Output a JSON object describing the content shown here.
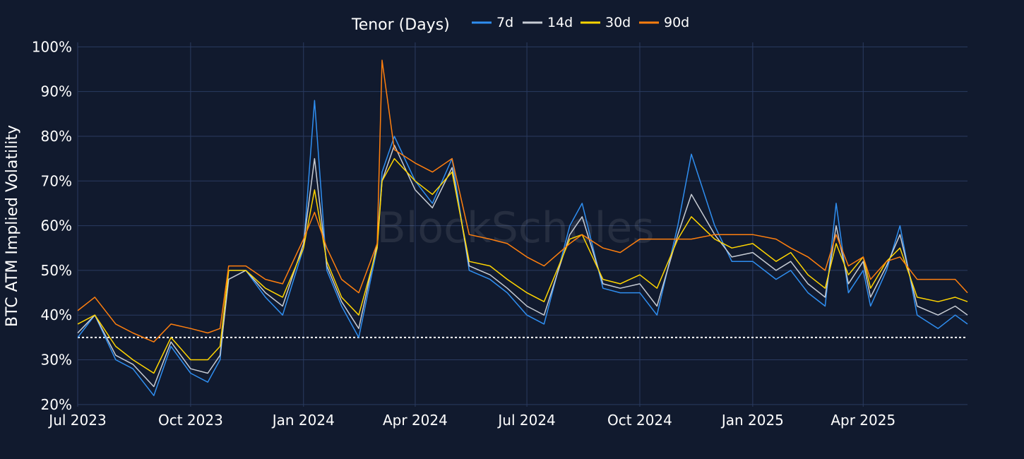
{
  "colors": {
    "background": "#111a2e",
    "grid": "#2a3b60",
    "reference_line": "#ffffff"
  },
  "chart_data": {
    "type": "line",
    "ylabel": "BTC ATM Implied Volatility",
    "legend": {
      "title": "Tenor (Days)",
      "placement": "top-center",
      "orientation": "horizontal"
    },
    "watermark": "BlockScholes",
    "grid": true,
    "xlim": [
      "2023-07-01",
      "2025-06-25"
    ],
    "ylim": [
      19.5,
      101
    ],
    "y_unit": "%",
    "x_ticks": [
      {
        "date": "2023-07-01",
        "label": "Jul 2023"
      },
      {
        "date": "2023-10-01",
        "label": "Oct 2023"
      },
      {
        "date": "2024-01-01",
        "label": "Jan 2024"
      },
      {
        "date": "2024-04-01",
        "label": "Apr 2024"
      },
      {
        "date": "2024-07-01",
        "label": "Jul 2024"
      },
      {
        "date": "2024-10-01",
        "label": "Oct 2024"
      },
      {
        "date": "2025-01-01",
        "label": "Jan 2025"
      },
      {
        "date": "2025-04-01",
        "label": "Apr 2025"
      }
    ],
    "y_ticks": [
      {
        "value": 20,
        "label": "20%"
      },
      {
        "value": 30,
        "label": "30%"
      },
      {
        "value": 40,
        "label": "40%"
      },
      {
        "value": 50,
        "label": "50%"
      },
      {
        "value": 60,
        "label": "60%"
      },
      {
        "value": 70,
        "label": "70%"
      },
      {
        "value": 80,
        "label": "80%"
      },
      {
        "value": 90,
        "label": "90%"
      },
      {
        "value": 100,
        "label": "100%"
      }
    ],
    "reference_lines": [
      {
        "y": 35,
        "style": "dotted"
      }
    ],
    "x": [
      "2023-07-01",
      "2023-07-15",
      "2023-08-01",
      "2023-08-15",
      "2023-09-01",
      "2023-09-15",
      "2023-10-01",
      "2023-10-15",
      "2023-10-25",
      "2023-11-01",
      "2023-11-15",
      "2023-12-01",
      "2023-12-15",
      "2024-01-01",
      "2024-01-10",
      "2024-01-20",
      "2024-02-01",
      "2024-02-15",
      "2024-03-01",
      "2024-03-05",
      "2024-03-15",
      "2024-04-01",
      "2024-04-15",
      "2024-05-01",
      "2024-05-15",
      "2024-06-01",
      "2024-06-15",
      "2024-07-01",
      "2024-07-15",
      "2024-08-05",
      "2024-08-15",
      "2024-09-01",
      "2024-09-15",
      "2024-10-01",
      "2024-10-15",
      "2024-11-01",
      "2024-11-12",
      "2024-12-01",
      "2024-12-15",
      "2025-01-01",
      "2025-01-20",
      "2025-02-01",
      "2025-02-15",
      "2025-03-01",
      "2025-03-10",
      "2025-03-20",
      "2025-04-01",
      "2025-04-07",
      "2025-04-20",
      "2025-05-01",
      "2025-05-15",
      "2025-06-01",
      "2025-06-15",
      "2025-06-25"
    ],
    "series": [
      {
        "name": "7d",
        "color": "#2f8ef0",
        "values": [
          35,
          40,
          30,
          28,
          22,
          33,
          27,
          25,
          30,
          50,
          50,
          44,
          40,
          55,
          88,
          50,
          42,
          35,
          55,
          72,
          80,
          70,
          65,
          75,
          50,
          48,
          45,
          40,
          38,
          60,
          65,
          46,
          45,
          45,
          40,
          60,
          76,
          60,
          52,
          52,
          48,
          50,
          45,
          42,
          65,
          45,
          50,
          42,
          50,
          60,
          40,
          37,
          40,
          38
        ]
      },
      {
        "name": "14d",
        "color": "#c7ccd4",
        "values": [
          36,
          40,
          31,
          29,
          24,
          34,
          28,
          27,
          31,
          48,
          50,
          45,
          42,
          56,
          75,
          51,
          43,
          37,
          56,
          70,
          78,
          68,
          64,
          73,
          51,
          49,
          46,
          42,
          40,
          58,
          62,
          47,
          46,
          47,
          42,
          58,
          67,
          58,
          53,
          54,
          50,
          52,
          47,
          44,
          60,
          47,
          52,
          44,
          51,
          58,
          42,
          40,
          42,
          40
        ]
      },
      {
        "name": "30d",
        "color": "#ffd500",
        "values": [
          38,
          40,
          33,
          30,
          27,
          35,
          30,
          30,
          33,
          50,
          50,
          46,
          44,
          55,
          68,
          52,
          44,
          40,
          55,
          70,
          75,
          70,
          67,
          72,
          52,
          51,
          48,
          45,
          43,
          57,
          58,
          48,
          47,
          49,
          46,
          57,
          62,
          57,
          55,
          56,
          52,
          54,
          49,
          46,
          56,
          49,
          53,
          46,
          52,
          55,
          44,
          43,
          44,
          43
        ]
      },
      {
        "name": "90d",
        "color": "#ff7f0e",
        "values": [
          41,
          44,
          38,
          36,
          34,
          38,
          37,
          36,
          37,
          51,
          51,
          48,
          47,
          57,
          63,
          55,
          48,
          45,
          56,
          97,
          77,
          74,
          72,
          75,
          58,
          57,
          56,
          53,
          51,
          56,
          58,
          55,
          54,
          57,
          57,
          57,
          57,
          58,
          58,
          58,
          57,
          55,
          53,
          50,
          58,
          51,
          53,
          48,
          52,
          53,
          48,
          48,
          48,
          45
        ]
      }
    ]
  }
}
